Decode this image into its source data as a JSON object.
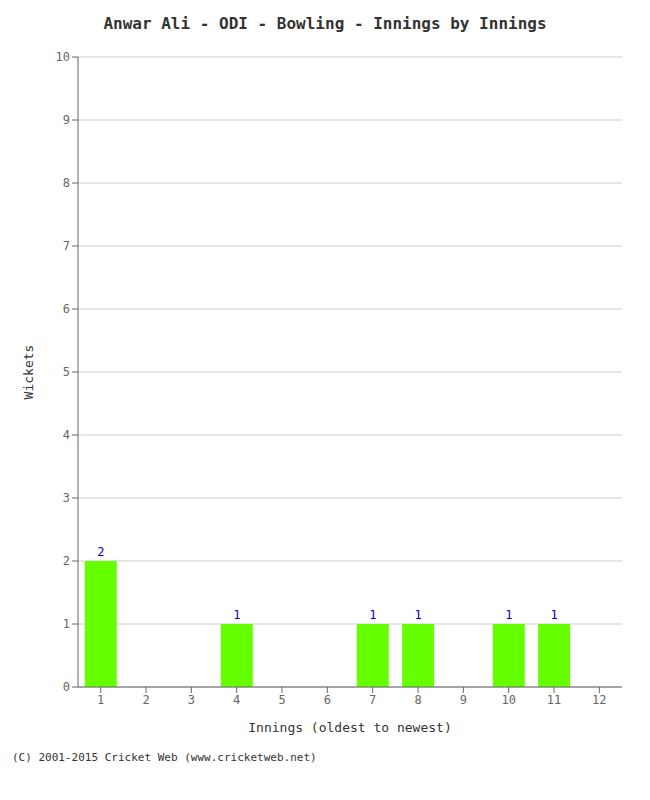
{
  "chart_data": {
    "type": "bar",
    "title": "Anwar Ali - ODI - Bowling - Innings by Innings",
    "xlabel": "Innings (oldest to newest)",
    "ylabel": "Wickets",
    "categories": [
      "1",
      "2",
      "3",
      "4",
      "5",
      "6",
      "7",
      "8",
      "9",
      "10",
      "11",
      "12"
    ],
    "values": [
      2,
      0,
      0,
      1,
      0,
      0,
      1,
      1,
      0,
      1,
      1,
      0
    ],
    "color": "#66ff00",
    "ylim": [
      0,
      10
    ],
    "yticks": [
      0,
      1,
      2,
      3,
      4,
      5,
      6,
      7,
      8,
      9,
      10
    ],
    "grid": true,
    "data_labels": true,
    "annotations": [
      "(C) 2001-2015 Cricket Web (www.cricketweb.net)"
    ]
  }
}
